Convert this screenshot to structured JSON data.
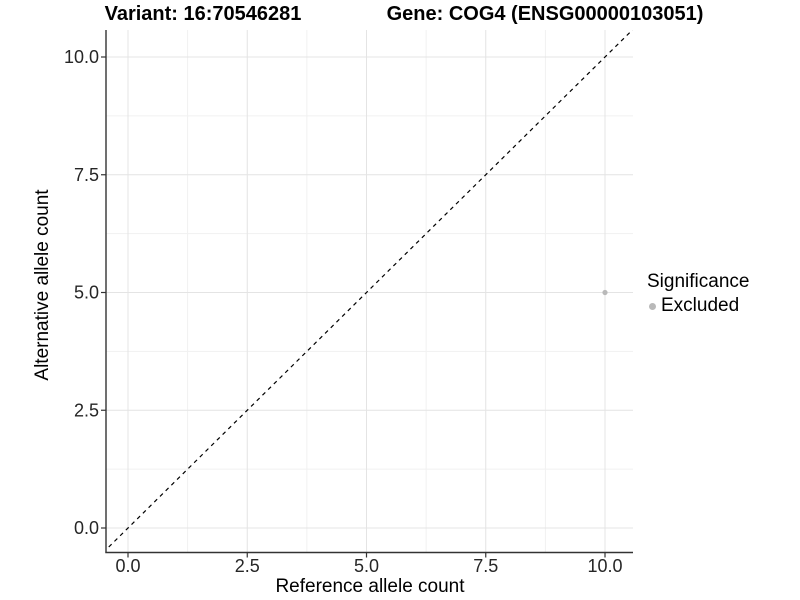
{
  "titles": {
    "variant": "Variant: 16:70546281",
    "gene": "Gene: COG4 (ENSG00000103051)"
  },
  "legend": {
    "title": "Significance",
    "items": [
      {
        "label": "Excluded",
        "color": "#b9b9b9"
      }
    ]
  },
  "chart_data": {
    "type": "scatter",
    "title_left": "Variant: 16:70546281",
    "title_right": "Gene: COG4 (ENSG00000103051)",
    "xlabel": "Reference allele count",
    "ylabel": "Alternative allele count",
    "xlim": [
      -0.46,
      10.59
    ],
    "ylim": [
      -0.51,
      10.57
    ],
    "x_ticks": [
      0,
      2.5,
      5,
      7.5,
      10
    ],
    "x_tick_labels": [
      "0.0",
      "2.5",
      "5.0",
      "7.5",
      "10.0"
    ],
    "x_minor_ticks": [
      1.25,
      3.75,
      6.25,
      8.75
    ],
    "y_ticks": [
      0,
      2.5,
      5,
      7.5,
      10
    ],
    "y_tick_labels": [
      "0.0",
      "2.5",
      "5.0",
      "7.5",
      "10.0"
    ],
    "y_minor_ticks": [
      1.25,
      3.75,
      6.25,
      8.75
    ],
    "grid": true,
    "legend_position": "right",
    "series": [
      {
        "name": "Excluded",
        "color": "#b9b9b9",
        "points": [
          {
            "x": 10,
            "y": 5
          }
        ],
        "point_radius": 2.6
      }
    ],
    "reference_line": {
      "slope": 1,
      "intercept": 0,
      "style": "dashed",
      "color": "#000000"
    }
  },
  "colors": {
    "background": "#ffffff",
    "axis_line": "#333333",
    "grid_major": "#e4e4e4",
    "grid_minor": "#f1f1f1",
    "tick_label": "#262626",
    "title_text": "#000000"
  }
}
